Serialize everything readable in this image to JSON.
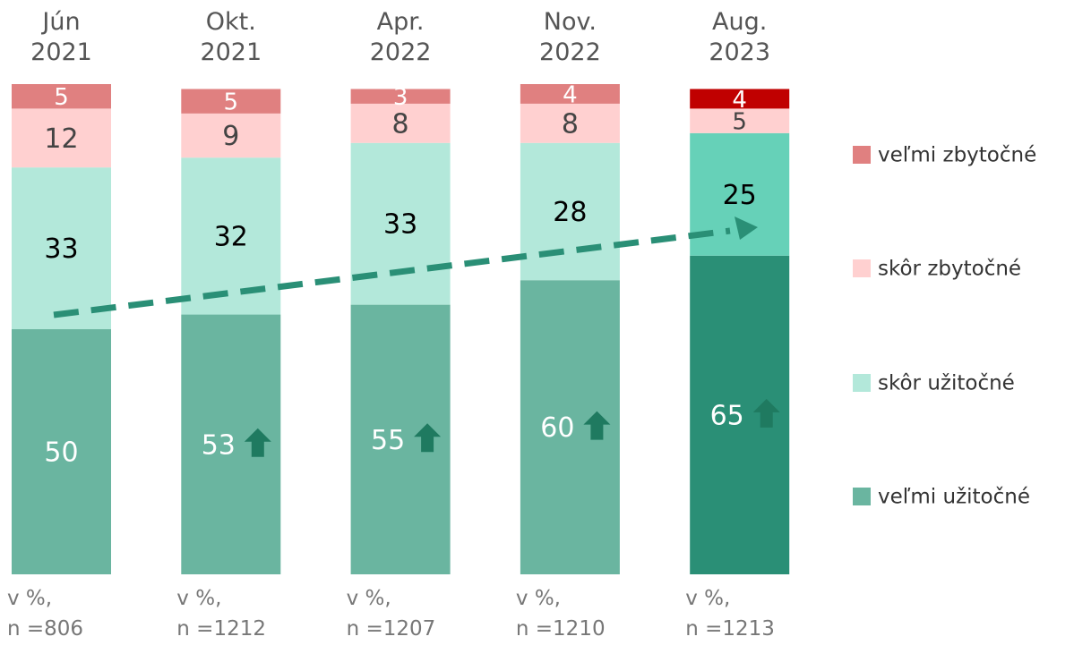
{
  "chart_data": {
    "type": "stacked-bar",
    "categories": [
      "Jún\n2021",
      "Okt.\n2021",
      "Apr.\n2022",
      "Nov.\n2022",
      "Aug.\n2023"
    ],
    "notes": [
      "v %,\nn =806",
      "v %,\nn =1212",
      "v %,\nn =1207",
      "v %,\nn =1210",
      "v %,\nn =1213"
    ],
    "ylim": [
      0,
      100
    ],
    "significant_increase": [
      false,
      true,
      true,
      true,
      true
    ],
    "series": [
      {
        "name": "veľmi užitočné",
        "color": "#6ab5a0",
        "colors": [
          "#6ab5a0",
          "#6ab5a0",
          "#6ab5a0",
          "#6ab5a0",
          "#2a8f76"
        ],
        "label_color": "#ffffff",
        "values": [
          50,
          53,
          55,
          60,
          65
        ]
      },
      {
        "name": "skôr užitočné",
        "color": "#b3e8da",
        "colors": [
          "#b3e8da",
          "#b3e8da",
          "#b3e8da",
          "#b3e8da",
          "#66d1b8"
        ],
        "label_color": "#000000",
        "values": [
          33,
          32,
          33,
          28,
          25
        ]
      },
      {
        "name": "skôr zbytočné",
        "color": "#ffd0d0",
        "colors": [
          "#ffd0d0",
          "#ffd0d0",
          "#ffd0d0",
          "#ffd0d0",
          "#ffd0d0"
        ],
        "label_color": "#444444",
        "values": [
          12,
          9,
          8,
          8,
          5
        ]
      },
      {
        "name": "veľmi zbytočné",
        "color": "#e08080",
        "colors": [
          "#e08080",
          "#e08080",
          "#e08080",
          "#e08080",
          "#c00000"
        ],
        "label_color": "#ffffff",
        "values": [
          5,
          5,
          3,
          4,
          4
        ]
      }
    ]
  }
}
